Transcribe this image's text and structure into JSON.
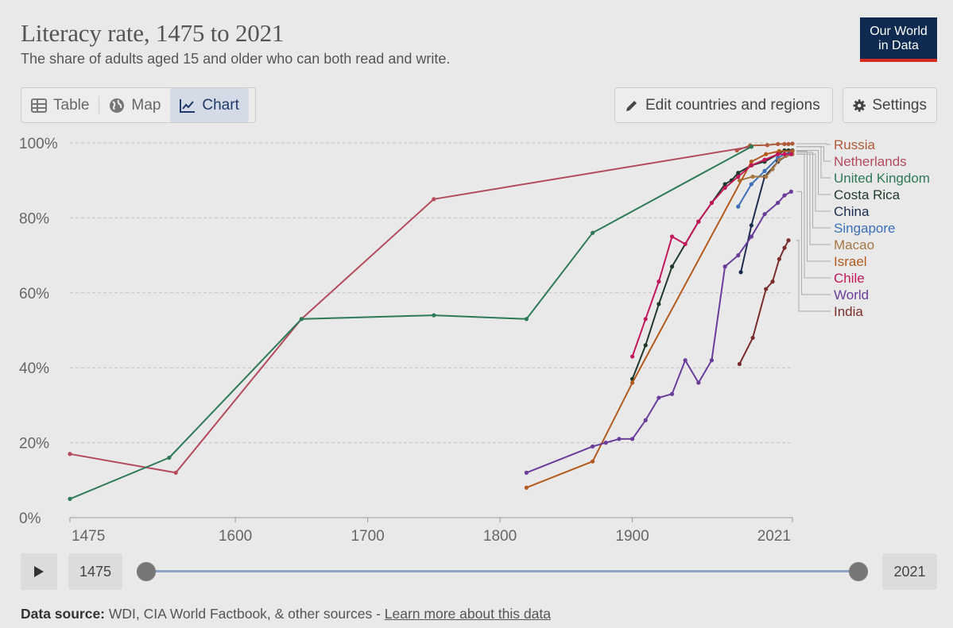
{
  "header": {
    "title": "Literacy rate, 1475 to 2021",
    "subtitle": "The share of adults aged 15 and older who can both read and write.",
    "logo_line1": "Our World",
    "logo_line2": "in Data"
  },
  "tabs": [
    {
      "label": "Table",
      "icon": "table-icon",
      "active": false
    },
    {
      "label": "Map",
      "icon": "globe-icon",
      "active": false
    },
    {
      "label": "Chart",
      "icon": "line-chart-icon",
      "active": true
    }
  ],
  "toolbar": {
    "edit_label": "Edit countries and regions",
    "settings_label": "Settings"
  },
  "timeline": {
    "start_label": "1475",
    "end_label": "2021"
  },
  "footer": {
    "source_label": "Data source:",
    "source_text": "WDI, CIA World Factbook, & other sources -",
    "link_text": "Learn more about this data"
  },
  "chart_data": {
    "type": "line",
    "xlim": [
      1475,
      2021
    ],
    "ylim": [
      0,
      100
    ],
    "y_ticks": [
      0,
      20,
      40,
      60,
      80,
      100
    ],
    "y_tick_labels": [
      "0%",
      "20%",
      "40%",
      "60%",
      "80%",
      "100%"
    ],
    "x_ticks": [
      1475,
      1600,
      1700,
      1800,
      1900,
      2021
    ],
    "x_tick_labels": [
      "1475",
      "1600",
      "1700",
      "1800",
      "1900",
      "2021"
    ],
    "grid": "horizontal-dashed",
    "legend_placement": "right",
    "series": [
      {
        "name": "Russia",
        "color": "#b05a3a",
        "points": [
          [
            1979,
            98
          ],
          [
            1989,
            99.3
          ],
          [
            2002,
            99.4
          ],
          [
            2010,
            99.7
          ],
          [
            2015,
            99.7
          ],
          [
            2018,
            99.7
          ],
          [
            2021,
            99.8
          ]
        ]
      },
      {
        "name": "Netherlands",
        "color": "#b44b5c",
        "points": [
          [
            1475,
            17
          ],
          [
            1555,
            12
          ],
          [
            1650,
            53
          ],
          [
            1750,
            85
          ],
          [
            1990,
            99
          ]
        ]
      },
      {
        "name": "United Kingdom",
        "color": "#2d7a57",
        "points": [
          [
            1475,
            5
          ],
          [
            1550,
            16
          ],
          [
            1650,
            53
          ],
          [
            1750,
            54
          ],
          [
            1820,
            53
          ],
          [
            1870,
            76
          ],
          [
            1990,
            99
          ]
        ]
      },
      {
        "name": "Costa Rica",
        "color": "#1f3a2a",
        "points": [
          [
            1900,
            37
          ],
          [
            1910,
            46
          ],
          [
            1920,
            57
          ],
          [
            1930,
            67
          ],
          [
            1950,
            79
          ],
          [
            1960,
            84
          ],
          [
            1970,
            89
          ],
          [
            1975,
            90
          ],
          [
            1980,
            92
          ],
          [
            1990,
            94
          ],
          [
            2000,
            95
          ],
          [
            2010,
            97
          ],
          [
            2015,
            98
          ],
          [
            2018,
            98
          ],
          [
            2021,
            98
          ]
        ]
      },
      {
        "name": "China",
        "color": "#1b2d4f",
        "points": [
          [
            1982,
            65.5
          ],
          [
            1990,
            78
          ],
          [
            2000,
            91
          ],
          [
            2010,
            95
          ],
          [
            2018,
            97
          ],
          [
            2020,
            97
          ]
        ]
      },
      {
        "name": "Singapore",
        "color": "#3b6fb8",
        "points": [
          [
            1980,
            83
          ],
          [
            1990,
            89
          ],
          [
            2000,
            92.5
          ],
          [
            2010,
            96
          ],
          [
            2015,
            97
          ],
          [
            2020,
            97.5
          ]
        ]
      },
      {
        "name": "Macao",
        "color": "#a67743",
        "points": [
          [
            1981,
            90
          ],
          [
            1991,
            91
          ],
          [
            2001,
            91
          ],
          [
            2006,
            93
          ],
          [
            2011,
            95.5
          ],
          [
            2016,
            96.5
          ],
          [
            2021,
            97
          ]
        ]
      },
      {
        "name": "Israel",
        "color": "#b35a1e",
        "points": [
          [
            1820,
            8
          ],
          [
            1870,
            15
          ],
          [
            1900,
            36
          ],
          [
            1990,
            95
          ],
          [
            2001,
            97
          ],
          [
            2011,
            97.8
          ],
          [
            2021,
            97.8
          ]
        ]
      },
      {
        "name": "Chile",
        "color": "#c2185b",
        "points": [
          [
            1900,
            43
          ],
          [
            1910,
            53
          ],
          [
            1920,
            63
          ],
          [
            1930,
            75
          ],
          [
            1940,
            73
          ],
          [
            1950,
            79
          ],
          [
            1960,
            84
          ],
          [
            1970,
            88
          ],
          [
            1980,
            91
          ],
          [
            1990,
            94
          ],
          [
            2000,
            95.5
          ],
          [
            2010,
            97
          ],
          [
            2015,
            97
          ],
          [
            2020,
            97
          ]
        ]
      },
      {
        "name": "World",
        "color": "#6a3d9a",
        "points": [
          [
            1820,
            12
          ],
          [
            1870,
            19
          ],
          [
            1880,
            20
          ],
          [
            1890,
            21
          ],
          [
            1900,
            21
          ],
          [
            1910,
            26
          ],
          [
            1920,
            32
          ],
          [
            1930,
            33
          ],
          [
            1940,
            42
          ],
          [
            1950,
            36
          ],
          [
            1960,
            42
          ],
          [
            1970,
            67
          ],
          [
            1980,
            70
          ],
          [
            1990,
            75
          ],
          [
            2000,
            81
          ],
          [
            2010,
            84
          ],
          [
            2015,
            86
          ],
          [
            2020,
            87
          ]
        ]
      },
      {
        "name": "India",
        "color": "#7b2d2d",
        "points": [
          [
            1981,
            41
          ],
          [
            1991,
            48
          ],
          [
            2001,
            61
          ],
          [
            2006,
            63
          ],
          [
            2011,
            69
          ],
          [
            2015,
            72
          ],
          [
            2018,
            74
          ]
        ]
      }
    ]
  }
}
